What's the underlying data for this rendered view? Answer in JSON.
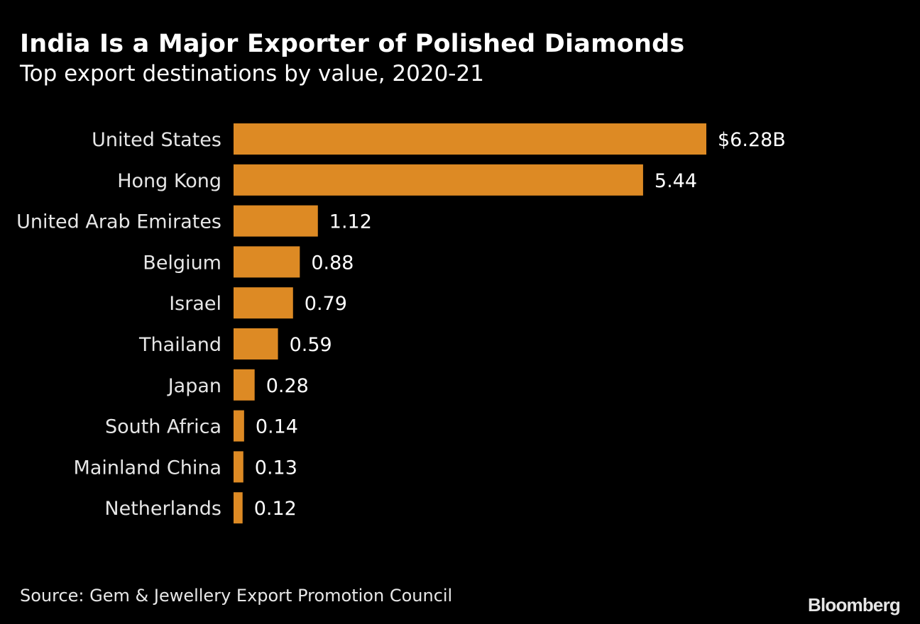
{
  "chart_data": {
    "type": "bar",
    "orientation": "horizontal",
    "title": "India Is a Major Exporter of Polished Diamonds",
    "subtitle": "Top export destinations by value, 2020-21",
    "xlabel": "",
    "ylabel": "",
    "unit": "$B",
    "categories": [
      "United States",
      "Hong Kong",
      "United Arab Emirates",
      "Belgium",
      "Israel",
      "Thailand",
      "Japan",
      "South Africa",
      "Mainland China",
      "Netherlands"
    ],
    "values": [
      6.28,
      5.44,
      1.12,
      0.88,
      0.79,
      0.59,
      0.28,
      0.14,
      0.13,
      0.12
    ],
    "value_labels": [
      "$6.28B",
      "5.44",
      "1.12",
      "0.88",
      "0.79",
      "0.59",
      "0.28",
      "0.14",
      "0.13",
      "0.12"
    ],
    "xlim": [
      0,
      6.28
    ],
    "grid": false,
    "legend": "none",
    "bar_color": "#dd8a24",
    "source": "Source: Gem & Jewellery Export Promotion Council",
    "brand": "Bloomberg"
  }
}
